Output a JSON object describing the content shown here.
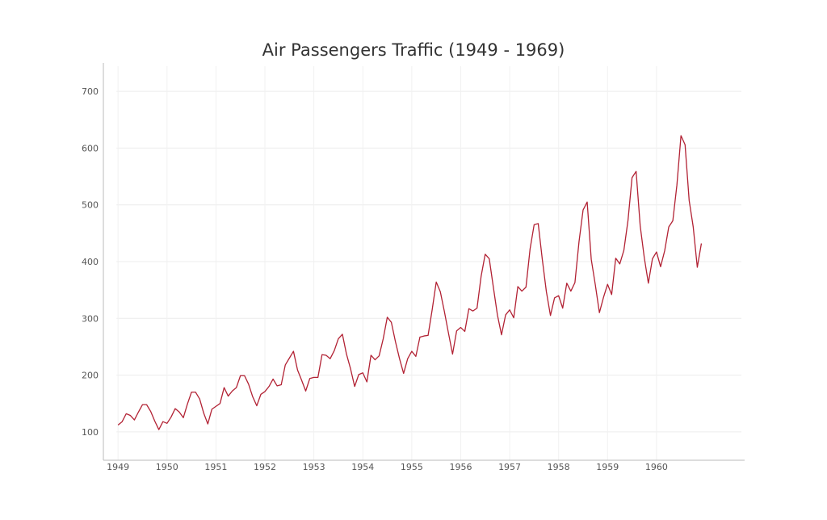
{
  "chart_data": {
    "type": "line",
    "title": "Air Passengers Traffic (1949 - 1969)",
    "xlabel": "",
    "ylabel": "",
    "x_ticks": [
      "1949",
      "1950",
      "1951",
      "1952",
      "1953",
      "1954",
      "1955",
      "1956",
      "1957",
      "1958",
      "1959",
      "1960"
    ],
    "y_ticks": [
      100,
      200,
      300,
      400,
      500,
      600,
      700
    ],
    "x_start": "1949-01",
    "frequency": "monthly",
    "xlim": [
      1948.7,
      1961.8
    ],
    "ylim": [
      50,
      750
    ],
    "grid": true,
    "series": [
      {
        "color": "#b22234",
        "values": [
          112,
          118,
          132,
          129,
          121,
          135,
          148,
          148,
          136,
          119,
          104,
          118,
          115,
          126,
          141,
          135,
          125,
          149,
          170,
          170,
          158,
          133,
          114,
          140,
          145,
          150,
          178,
          163,
          172,
          178,
          199,
          199,
          184,
          162,
          146,
          166,
          171,
          180,
          193,
          181,
          183,
          218,
          230,
          242,
          209,
          191,
          172,
          194,
          196,
          196,
          236,
          235,
          229,
          243,
          264,
          272,
          237,
          211,
          180,
          201,
          204,
          188,
          235,
          227,
          234,
          264,
          302,
          293,
          259,
          229,
          203,
          229,
          242,
          233,
          267,
          269,
          270,
          315,
          364,
          347,
          312,
          274,
          237,
          278,
          284,
          277,
          317,
          313,
          318,
          374,
          413,
          405,
          355,
          306,
          271,
          306,
          315,
          301,
          356,
          348,
          355,
          422,
          465,
          467,
          404,
          347,
          305,
          336,
          340,
          318,
          362,
          348,
          363,
          435,
          491,
          505,
          404,
          359,
          310,
          337,
          360,
          342,
          406,
          396,
          420,
          472,
          548,
          559,
          463,
          407,
          362,
          405,
          417,
          391,
          419,
          461,
          472,
          535,
          622,
          606,
          508,
          461,
          390,
          432
        ]
      }
    ]
  }
}
